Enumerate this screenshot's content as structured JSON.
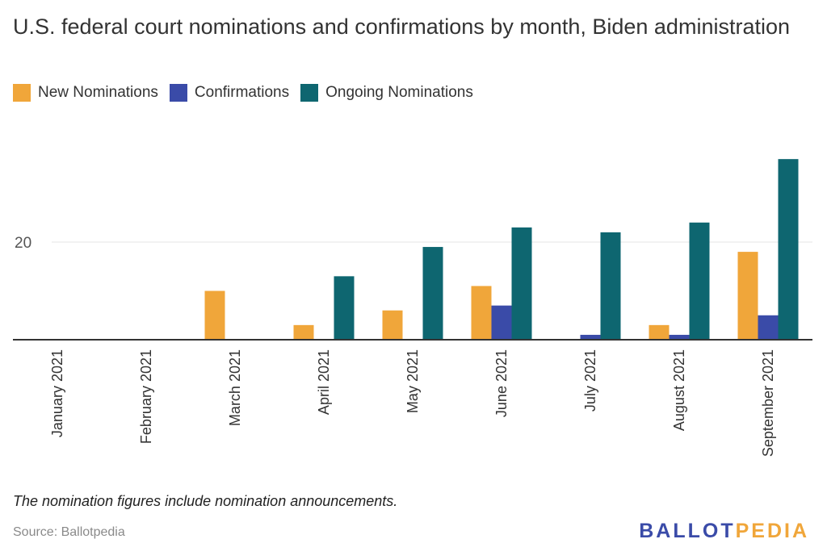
{
  "title": "U.S. federal court nominations and confirmations by month, Biden administration",
  "note": "The nomination figures include nomination announcements.",
  "source": "Source: Ballotpedia",
  "brand": {
    "part1": "BALLOT",
    "part2": "PEDIA"
  },
  "colors": {
    "new_nominations": "#f0a63a",
    "confirmations": "#3a4ba8",
    "ongoing_nominations": "#0e6670",
    "grid": "#e6e6e6",
    "axis": "#333333"
  },
  "chart_data": {
    "type": "bar",
    "categories": [
      "January 2021",
      "February 2021",
      "March 2021",
      "April 2021",
      "May 2021",
      "June 2021",
      "July 2021",
      "August 2021",
      "September 2021"
    ],
    "series": [
      {
        "name": "New Nominations",
        "color_key": "new_nominations",
        "values": [
          0,
          0,
          10,
          3,
          6,
          11,
          0,
          3,
          18
        ]
      },
      {
        "name": "Confirmations",
        "color_key": "confirmations",
        "values": [
          0,
          0,
          0,
          0,
          0,
          7,
          1,
          1,
          5
        ]
      },
      {
        "name": "Ongoing Nominations",
        "color_key": "ongoing_nominations",
        "values": [
          0,
          0,
          0,
          13,
          19,
          23,
          22,
          24,
          37
        ]
      }
    ],
    "y_ticks": [
      20
    ],
    "ylim": [
      0,
      40
    ],
    "legend_position": "top-left",
    "grid": true
  }
}
